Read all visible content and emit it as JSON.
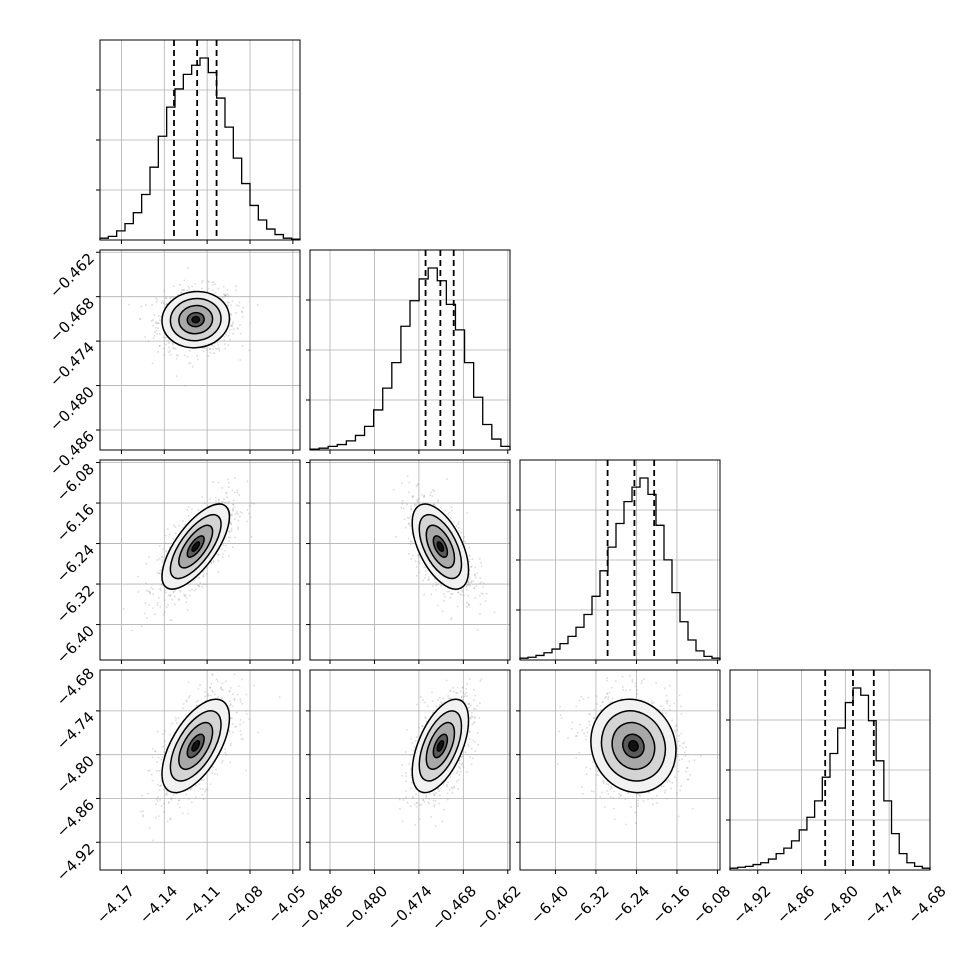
{
  "chart_data": {
    "type": "corner",
    "description_params": 4,
    "grid": true,
    "axes": [
      {
        "range": [
          -4.185,
          -4.045
        ],
        "ticks": [
          -4.17,
          -4.14,
          -4.11,
          -4.08,
          -4.05
        ],
        "tick_labels": [
          "−4.17",
          "−4.14",
          "−4.11",
          "−4.08",
          "−4.05"
        ],
        "quantiles": [
          -4.1332,
          -4.117,
          -4.1034
        ],
        "center": -4.118,
        "sd": 0.0118
      },
      {
        "range": [
          -0.4887,
          -0.4617
        ],
        "ticks": [
          -0.486,
          -0.48,
          -0.474,
          -0.468,
          -0.462
        ],
        "tick_labels": [
          "−0.486",
          "−0.480",
          "−0.474",
          "−0.468",
          "−0.462"
        ],
        "quantiles": [
          -0.4731,
          -0.4711,
          -0.4693
        ],
        "center": -0.4711,
        "sd": 0.0019
      },
      {
        "range": [
          -6.47,
          -6.075
        ],
        "ticks": [
          -6.4,
          -6.32,
          -6.24,
          -6.16,
          -6.08
        ],
        "tick_labels": [
          "−6.40",
          "−6.32",
          "−6.24",
          "−6.16",
          "−6.08"
        ],
        "quantiles": [
          -6.297,
          -6.244,
          -6.205
        ],
        "center": -6.246,
        "sd": 0.042
      },
      {
        "range": [
          -4.958,
          -4.684
        ],
        "ticks": [
          -4.92,
          -4.86,
          -4.8,
          -4.74,
          -4.68
        ],
        "tick_labels": [
          "−4.92",
          "−4.86",
          "−4.80",
          "−4.74",
          "−4.68"
        ],
        "quantiles": [
          -4.8276,
          -4.7895,
          -4.761
        ],
        "center": -4.788,
        "sd": 0.032
      }
    ],
    "histograms": [
      [
        0.01,
        0.02,
        0.05,
        0.09,
        0.15,
        0.25,
        0.4,
        0.57,
        0.73,
        0.83,
        0.91,
        0.96,
        1.0,
        0.92,
        0.78,
        0.62,
        0.45,
        0.31,
        0.19,
        0.11,
        0.06,
        0.03,
        0.01,
        0.005
      ],
      [
        0.005,
        0.01,
        0.02,
        0.03,
        0.05,
        0.08,
        0.13,
        0.22,
        0.34,
        0.48,
        0.68,
        0.82,
        0.94,
        1.0,
        0.93,
        0.8,
        0.66,
        0.48,
        0.29,
        0.14,
        0.06,
        0.02
      ],
      [
        0.01,
        0.015,
        0.025,
        0.04,
        0.06,
        0.09,
        0.13,
        0.18,
        0.25,
        0.35,
        0.49,
        0.62,
        0.75,
        0.87,
        0.95,
        1.0,
        0.91,
        0.74,
        0.55,
        0.37,
        0.21,
        0.11,
        0.05,
        0.02,
        0.01
      ],
      [
        0.01,
        0.015,
        0.02,
        0.03,
        0.04,
        0.06,
        0.09,
        0.12,
        0.16,
        0.22,
        0.29,
        0.38,
        0.51,
        0.64,
        0.78,
        0.92,
        1.0,
        0.96,
        0.82,
        0.6,
        0.38,
        0.2,
        0.09,
        0.04,
        0.02,
        0.01
      ]
    ],
    "correlations": {
      "1_0": 0.05,
      "2_0": 0.7,
      "2_1": -0.55,
      "3_0": 0.6,
      "3_1": 0.55,
      "3_2": -0.1
    }
  }
}
